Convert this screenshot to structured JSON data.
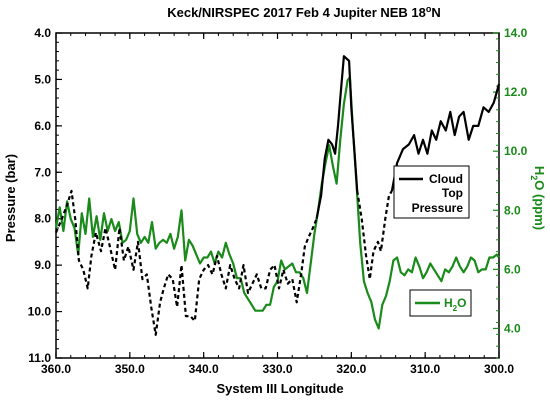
{
  "chart_data": {
    "type": "line",
    "title": "Keck/NIRSPEC 2017 Feb 4 Jupiter NEB 18",
    "title_superscript": "o",
    "title_suffix": "N",
    "xlabel": "System III Longitude",
    "ylabel_left": "Pressure (bar)",
    "ylabel_right": "H",
    "ylabel_right_sub": "2",
    "ylabel_right_suffix": "O (ppm)",
    "xlim": [
      360,
      300
    ],
    "ylim_left": [
      11.0,
      4.0
    ],
    "ylim_right": [
      3.0,
      14.0
    ],
    "x_ticks": [
      "360.0",
      "350.0",
      "340.0",
      "330.0",
      "320.0",
      "310.0",
      "300.0"
    ],
    "y_left_ticks": [
      "4.0",
      "5.0",
      "6.0",
      "7.0",
      "8.0",
      "9.0",
      "10.0",
      "11.0"
    ],
    "y_right_ticks": [
      "4.0",
      "6.0",
      "8.0",
      "10.0",
      "12.0",
      "14.0"
    ],
    "colors": {
      "cloud": "#000000",
      "h2o": "#1a8a1a",
      "right_axis": "#1a8a1a"
    },
    "series": [
      {
        "name": "Cloud Top Pressure",
        "legend_lines": [
          "Cloud",
          "Top",
          "Pressure"
        ],
        "axis": "left",
        "color": "#000000",
        "segments": [
          {
            "style": "dashed",
            "points": [
              [
                360.0,
                8.3
              ],
              [
                359.2,
                8.0
              ],
              [
                358.5,
                7.7
              ],
              [
                357.9,
                7.4
              ],
              [
                357.4,
                8.0
              ],
              [
                356.9,
                8.9
              ],
              [
                356.3,
                9.1
              ],
              [
                355.7,
                9.5
              ],
              [
                355.2,
                8.8
              ],
              [
                354.6,
                8.3
              ],
              [
                353.9,
                8.7
              ],
              [
                353.3,
                8.2
              ],
              [
                352.7,
                8.6
              ],
              [
                352.0,
                9.1
              ],
              [
                351.4,
                8.2
              ],
              [
                350.8,
                8.9
              ],
              [
                350.2,
                8.6
              ],
              [
                349.5,
                9.1
              ],
              [
                348.9,
                8.5
              ],
              [
                348.3,
                9.3
              ],
              [
                347.7,
                9.2
              ],
              [
                347.1,
                9.9
              ],
              [
                346.5,
                10.5
              ],
              [
                345.9,
                9.8
              ],
              [
                345.4,
                9.5
              ],
              [
                344.8,
                9.2
              ],
              [
                344.2,
                9.3
              ],
              [
                343.6,
                9.9
              ],
              [
                343.0,
                9.0
              ],
              [
                342.4,
                10.1
              ],
              [
                341.8,
                10.1
              ],
              [
                341.2,
                10.2
              ],
              [
                340.6,
                9.3
              ],
              [
                340.0,
                9.1
              ],
              [
                339.4,
                9.0
              ],
              [
                338.8,
                9.2
              ],
              [
                338.2,
                8.8
              ],
              [
                337.6,
                9.2
              ],
              [
                337.0,
                9.5
              ],
              [
                336.4,
                9.0
              ],
              [
                335.8,
                9.3
              ],
              [
                335.2,
                9.5
              ],
              [
                334.6,
                9.0
              ],
              [
                334.0,
                9.6
              ],
              [
                333.4,
                9.4
              ],
              [
                332.8,
                9.2
              ],
              [
                332.2,
                9.5
              ],
              [
                331.6,
                9.5
              ],
              [
                331.0,
                9.1
              ],
              [
                330.4,
                9.0
              ],
              [
                329.8,
                9.5
              ],
              [
                329.2,
                9.1
              ],
              [
                328.6,
                9.4
              ],
              [
                328.0,
                9.3
              ],
              [
                327.4,
                9.8
              ],
              [
                326.8,
                9.2
              ],
              [
                326.3,
                8.6
              ],
              [
                325.8,
                8.4
              ],
              [
                325.2,
                8.2
              ],
              [
                324.7,
                8.0
              ]
            ]
          },
          {
            "style": "solid",
            "points": [
              [
                324.7,
                8.0
              ],
              [
                324.1,
                7.5
              ],
              [
                323.6,
                6.7
              ],
              [
                323.1,
                6.3
              ],
              [
                322.6,
                6.4
              ],
              [
                322.2,
                6.6
              ],
              [
                321.8,
                6.0
              ],
              [
                321.5,
                5.4
              ],
              [
                321.0,
                4.5
              ],
              [
                320.3,
                4.6
              ],
              [
                320.0,
                5.6
              ],
              [
                319.6,
                6.5
              ],
              [
                319.2,
                7.4
              ]
            ]
          },
          {
            "style": "dashed",
            "points": [
              [
                319.2,
                7.4
              ],
              [
                318.6,
                8.0
              ],
              [
                318.0,
                8.8
              ],
              [
                317.5,
                9.3
              ],
              [
                317.0,
                8.7
              ],
              [
                316.4,
                8.5
              ],
              [
                316.0,
                8.7
              ],
              [
                315.4,
                8.0
              ],
              [
                314.9,
                7.5
              ],
              [
                314.5,
                7.4
              ]
            ]
          },
          {
            "style": "solid",
            "points": [
              [
                314.5,
                7.4
              ],
              [
                313.8,
                6.8
              ],
              [
                313.0,
                6.5
              ],
              [
                312.2,
                6.4
              ],
              [
                311.5,
                6.2
              ],
              [
                310.9,
                6.6
              ],
              [
                310.3,
                6.3
              ],
              [
                309.7,
                6.6
              ],
              [
                309.1,
                6.1
              ],
              [
                308.5,
                6.3
              ],
              [
                307.9,
                5.9
              ],
              [
                307.2,
                6.1
              ],
              [
                306.6,
                5.7
              ],
              [
                306.0,
                6.2
              ],
              [
                305.4,
                5.8
              ],
              [
                304.8,
                5.7
              ],
              [
                304.1,
                6.3
              ],
              [
                303.5,
                6.0
              ],
              [
                302.8,
                6.0
              ],
              [
                302.1,
                5.6
              ],
              [
                301.4,
                5.7
              ],
              [
                300.7,
                5.5
              ],
              [
                300.0,
                5.1
              ]
            ]
          }
        ]
      },
      {
        "name": "H2O",
        "legend_main": "H",
        "legend_sub": "2",
        "legend_suffix": "O",
        "axis": "right",
        "color": "#1a8a1a",
        "segments": [
          {
            "style": "solid",
            "points": [
              [
                360.0,
                7.4
              ],
              [
                359.5,
                8.1
              ],
              [
                359.0,
                7.3
              ],
              [
                358.5,
                8.3
              ],
              [
                358.0,
                7.7
              ],
              [
                357.5,
                7.4
              ],
              [
                357.0,
                6.5
              ],
              [
                356.5,
                7.9
              ],
              [
                356.0,
                7.2
              ],
              [
                355.5,
                8.4
              ],
              [
                355.0,
                7.1
              ],
              [
                354.5,
                7.8
              ],
              [
                354.0,
                7.0
              ],
              [
                353.5,
                7.9
              ],
              [
                353.0,
                7.3
              ],
              [
                352.5,
                7.7
              ],
              [
                352.0,
                7.3
              ],
              [
                351.5,
                7.6
              ],
              [
                351.0,
                6.9
              ],
              [
                350.5,
                7.0
              ],
              [
                350.0,
                7.3
              ],
              [
                349.5,
                8.4
              ],
              [
                349.0,
                7.2
              ],
              [
                348.5,
                6.9
              ],
              [
                348.0,
                7.1
              ],
              [
                347.5,
                6.9
              ],
              [
                347.0,
                7.6
              ],
              [
                346.5,
                6.7
              ],
              [
                346.0,
                6.9
              ],
              [
                345.5,
                7.0
              ],
              [
                345.0,
                6.9
              ],
              [
                344.5,
                7.2
              ],
              [
                344.0,
                6.7
              ],
              [
                343.5,
                7.1
              ],
              [
                343.0,
                8.0
              ],
              [
                342.5,
                6.3
              ],
              [
                342.0,
                7.0
              ],
              [
                341.5,
                6.8
              ],
              [
                341.0,
                6.5
              ],
              [
                340.5,
                6.2
              ],
              [
                340.0,
                6.4
              ],
              [
                339.5,
                6.4
              ],
              [
                339.0,
                6.6
              ],
              [
                338.5,
                6.2
              ],
              [
                338.0,
                6.6
              ],
              [
                337.5,
                6.4
              ],
              [
                337.0,
                6.9
              ],
              [
                336.5,
                6.5
              ],
              [
                336.0,
                6.2
              ],
              [
                335.5,
                5.7
              ],
              [
                335.0,
                5.7
              ],
              [
                334.5,
                5.2
              ],
              [
                334.0,
                5.0
              ],
              [
                333.5,
                4.8
              ],
              [
                333.0,
                4.6
              ],
              [
                332.5,
                4.6
              ],
              [
                332.0,
                4.6
              ],
              [
                331.5,
                4.8
              ],
              [
                331.0,
                4.8
              ],
              [
                330.5,
                5.4
              ],
              [
                330.0,
                5.6
              ],
              [
                329.5,
                6.3
              ],
              [
                329.0,
                6.0
              ],
              [
                328.5,
                6.1
              ],
              [
                328.0,
                6.2
              ],
              [
                327.5,
                5.9
              ],
              [
                327.0,
                5.9
              ],
              [
                326.5,
                5.7
              ],
              [
                326.0,
                5.2
              ],
              [
                325.5,
                6.2
              ],
              [
                325.0,
                7.2
              ],
              [
                324.5,
                8.0
              ],
              [
                324.0,
                8.9
              ],
              [
                323.5,
                9.6
              ],
              [
                323.0,
                10.2
              ],
              [
                322.5,
                9.5
              ],
              [
                322.0,
                8.9
              ],
              [
                321.5,
                10.4
              ],
              [
                321.0,
                11.6
              ],
              [
                320.5,
                12.4
              ],
              [
                320.2,
                12.5
              ],
              [
                319.8,
                10.8
              ],
              [
                319.3,
                8.9
              ],
              [
                318.8,
                6.9
              ],
              [
                318.3,
                5.6
              ],
              [
                317.8,
                5.2
              ],
              [
                317.3,
                4.9
              ],
              [
                316.8,
                4.3
              ],
              [
                316.3,
                4.0
              ],
              [
                315.8,
                4.8
              ],
              [
                315.3,
                5.1
              ],
              [
                314.8,
                5.6
              ],
              [
                314.3,
                6.3
              ],
              [
                313.8,
                6.4
              ],
              [
                313.3,
                5.9
              ],
              [
                312.8,
                5.8
              ],
              [
                312.3,
                6.0
              ],
              [
                311.8,
                5.9
              ],
              [
                311.3,
                6.4
              ],
              [
                310.8,
                6.1
              ],
              [
                310.3,
                5.7
              ],
              [
                309.8,
                5.9
              ],
              [
                309.3,
                6.2
              ],
              [
                308.8,
                6.0
              ],
              [
                308.3,
                5.8
              ],
              [
                307.8,
                5.6
              ],
              [
                307.3,
                6.0
              ],
              [
                306.8,
                5.9
              ],
              [
                306.3,
                6.1
              ],
              [
                305.8,
                6.4
              ],
              [
                305.3,
                6.1
              ],
              [
                304.8,
                5.9
              ],
              [
                304.3,
                6.1
              ],
              [
                303.8,
                6.4
              ],
              [
                303.3,
                6.3
              ],
              [
                302.8,
                5.9
              ],
              [
                302.3,
                6.0
              ],
              [
                301.8,
                6.0
              ],
              [
                301.3,
                6.4
              ],
              [
                300.8,
                6.4
              ],
              [
                300.3,
                6.5
              ],
              [
                300.0,
                6.4
              ]
            ]
          }
        ]
      }
    ]
  }
}
